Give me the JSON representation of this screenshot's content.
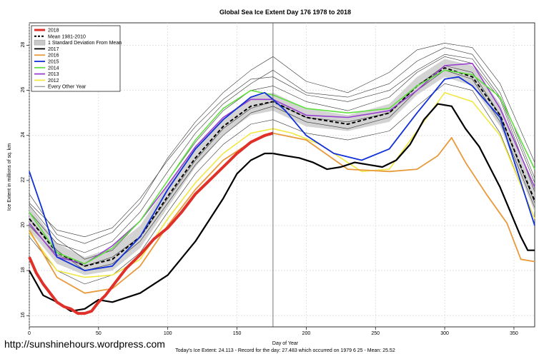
{
  "chart_data": {
    "type": "line",
    "title": "Global Sea Ice Extent Day 176 1978 to 2018",
    "xlabel": "Day of Year",
    "ylabel": "Ice Extent in millions of sq. km",
    "xlim": [
      0,
      365
    ],
    "ylim": [
      15.5,
      29
    ],
    "x_ticks": [
      0,
      50,
      100,
      150,
      200,
      250,
      300,
      350
    ],
    "y_ticks": [
      16,
      18,
      20,
      22,
      24,
      26,
      28
    ],
    "grid": true,
    "legend_position": "top-left",
    "current_day_marker": 176,
    "footer": "Today's Ice Extent: 24.113  - Record for the day: 27.483 which occurred on 1979 6 25  - Mean: 25.52",
    "legend": [
      {
        "label": "2018",
        "color": "#e0302a",
        "style": "thick"
      },
      {
        "label": "Mean 1981-2010",
        "color": "#000000",
        "style": "dashed"
      },
      {
        "label": "1 Standard Deviation From Mean",
        "color": "#c8c8c8",
        "style": "band"
      },
      {
        "label": "2017",
        "color": "#000000",
        "style": "solid"
      },
      {
        "label": "2016",
        "color": "#e89a3c",
        "style": "solid"
      },
      {
        "label": "2015",
        "color": "#1030d8",
        "style": "solid"
      },
      {
        "label": "2014",
        "color": "#60e040",
        "style": "solid"
      },
      {
        "label": "2013",
        "color": "#9a40d0",
        "style": "solid"
      },
      {
        "label": "2012",
        "color": "#f0e840",
        "style": "solid"
      },
      {
        "label": "Every Other Year",
        "color": "#555555",
        "style": "thin"
      }
    ],
    "band": {
      "x": [
        0,
        20,
        40,
        60,
        80,
        100,
        120,
        140,
        160,
        176,
        200,
        230,
        260,
        280,
        300,
        320,
        340,
        365
      ],
      "lower": [
        19.8,
        18.3,
        17.8,
        18.0,
        19.0,
        20.8,
        22.6,
        24.0,
        24.9,
        25.1,
        24.4,
        24.2,
        24.6,
        25.8,
        26.6,
        26.2,
        24.4,
        20.6
      ],
      "upper": [
        20.9,
        19.2,
        18.6,
        19.0,
        20.0,
        21.8,
        23.5,
        24.8,
        25.7,
        25.9,
        25.2,
        24.9,
        25.4,
        26.6,
        27.4,
        27.1,
        25.4,
        21.6
      ]
    },
    "series": [
      {
        "name": "Every Other Year",
        "color": "#333333",
        "width": 0.6,
        "x": [
          0,
          20,
          40,
          60,
          80,
          100,
          120,
          140,
          160,
          176,
          200,
          230,
          260,
          280,
          300,
          320,
          340,
          365
        ],
        "y": [
          20.6,
          19.2,
          18.8,
          19.3,
          20.6,
          22.4,
          24.1,
          25.4,
          26.3,
          26.9,
          25.9,
          25.7,
          26.3,
          27.3,
          27.9,
          27.6,
          25.9,
          22.1
        ]
      },
      {
        "name": "Every Other Year",
        "color": "#333333",
        "width": 0.6,
        "x": [
          0,
          20,
          40,
          60,
          80,
          100,
          120,
          140,
          160,
          176,
          200,
          230,
          260,
          280,
          300,
          320,
          340,
          365
        ],
        "y": [
          20.0,
          18.7,
          18.2,
          18.6,
          19.5,
          21.2,
          22.9,
          24.3,
          25.2,
          25.5,
          24.8,
          24.6,
          25.0,
          26.2,
          27.1,
          26.8,
          24.9,
          21.0
        ]
      },
      {
        "name": "Every Other Year",
        "color": "#333333",
        "width": 0.6,
        "x": [
          0,
          20,
          40,
          60,
          80,
          100,
          120,
          140,
          160,
          176,
          200,
          230,
          260,
          280,
          300,
          320,
          340,
          365
        ],
        "y": [
          21.4,
          19.6,
          19.2,
          19.7,
          21.0,
          23.0,
          24.6,
          25.9,
          26.9,
          27.5,
          26.4,
          25.9,
          26.8,
          27.8,
          28.1,
          27.9,
          26.3,
          22.8
        ]
      },
      {
        "name": "Every Other Year",
        "color": "#333333",
        "width": 0.6,
        "x": [
          0,
          20,
          40,
          60,
          80,
          100,
          120,
          140,
          160,
          176,
          200,
          230,
          260,
          280,
          300,
          320,
          340,
          365
        ],
        "y": [
          19.5,
          18.0,
          17.4,
          17.8,
          18.8,
          20.6,
          22.3,
          23.6,
          24.5,
          24.7,
          24.1,
          23.8,
          24.2,
          25.3,
          26.3,
          26.0,
          24.1,
          20.3
        ]
      },
      {
        "name": "Every Other Year",
        "color": "#333333",
        "width": 0.6,
        "x": [
          0,
          20,
          40,
          60,
          80,
          100,
          120,
          140,
          160,
          176,
          200,
          230,
          260,
          280,
          300,
          320,
          340,
          365
        ],
        "y": [
          20.9,
          19.4,
          18.5,
          18.9,
          20.2,
          22.0,
          23.7,
          25.1,
          26.0,
          26.2,
          25.5,
          25.1,
          25.7,
          26.8,
          27.5,
          27.2,
          25.6,
          21.5
        ]
      },
      {
        "name": "Every Other Year",
        "color": "#333333",
        "width": 0.6,
        "x": [
          0,
          20,
          40,
          60,
          80,
          100,
          120,
          140,
          160,
          176,
          200,
          230,
          260,
          280,
          300,
          320,
          340,
          365
        ],
        "y": [
          20.3,
          18.9,
          18.0,
          18.3,
          19.3,
          21.0,
          22.7,
          24.0,
          25.0,
          25.3,
          24.6,
          24.3,
          24.8,
          26.0,
          26.9,
          26.5,
          24.6,
          20.8
        ]
      },
      {
        "name": "Every Other Year",
        "color": "#333333",
        "width": 0.6,
        "x": [
          0,
          20,
          40,
          60,
          80,
          100,
          120,
          140,
          160,
          176,
          200,
          230,
          260,
          280,
          300,
          320,
          340,
          365
        ],
        "y": [
          21.0,
          19.8,
          19.5,
          19.9,
          21.2,
          22.9,
          24.4,
          25.6,
          26.5,
          26.6,
          25.8,
          25.5,
          26.0,
          26.9,
          27.6,
          27.4,
          25.7,
          21.9
        ]
      },
      {
        "name": "Mean 1981-2010",
        "color": "#000000",
        "width": 2,
        "dash": "5,3",
        "x": [
          0,
          20,
          40,
          60,
          80,
          100,
          120,
          140,
          160,
          176,
          200,
          230,
          260,
          280,
          300,
          320,
          340,
          365
        ],
        "y": [
          20.3,
          18.8,
          18.2,
          18.5,
          19.5,
          21.3,
          23.0,
          24.4,
          25.3,
          25.5,
          24.8,
          24.5,
          25.0,
          26.2,
          27.0,
          26.6,
          24.9,
          21.1
        ]
      },
      {
        "name": "2012",
        "color": "#f0e840",
        "width": 1.6,
        "x": [
          0,
          20,
          40,
          60,
          80,
          100,
          120,
          140,
          160,
          176,
          190,
          210,
          240,
          260,
          280,
          300,
          320,
          340,
          365
        ],
        "y": [
          19.7,
          18.0,
          17.7,
          17.8,
          18.5,
          20.3,
          21.9,
          23.2,
          24.1,
          24.3,
          24.1,
          23.6,
          22.4,
          22.5,
          24.2,
          25.9,
          25.5,
          24.0,
          20.3
        ]
      },
      {
        "name": "2013",
        "color": "#9a40d0",
        "width": 1.6,
        "x": [
          0,
          20,
          40,
          60,
          80,
          100,
          120,
          140,
          160,
          176,
          200,
          230,
          260,
          280,
          300,
          320,
          340,
          365
        ],
        "y": [
          20.1,
          18.6,
          18.3,
          19.1,
          20.2,
          21.8,
          23.5,
          24.8,
          25.6,
          25.6,
          24.9,
          24.8,
          25.1,
          26.0,
          27.1,
          27.2,
          25.2,
          21.7
        ]
      },
      {
        "name": "2014",
        "color": "#60e040",
        "width": 1.6,
        "x": [
          0,
          20,
          40,
          60,
          80,
          100,
          120,
          140,
          160,
          176,
          200,
          230,
          260,
          280,
          300,
          320,
          340,
          365
        ],
        "y": [
          20.6,
          18.8,
          18.3,
          19.0,
          20.2,
          22.0,
          23.8,
          25.2,
          26.0,
          25.8,
          25.2,
          25.0,
          25.2,
          26.2,
          26.9,
          26.7,
          25.7,
          22.5
        ]
      },
      {
        "name": "2015",
        "color": "#1030d8",
        "width": 1.8,
        "x": [
          0,
          10,
          20,
          40,
          60,
          80,
          100,
          120,
          140,
          160,
          170,
          176,
          185,
          200,
          220,
          240,
          260,
          280,
          300,
          310,
          320,
          340,
          365
        ],
        "y": [
          22.4,
          20.6,
          18.6,
          18.0,
          18.2,
          19.5,
          21.6,
          23.4,
          24.7,
          25.7,
          25.9,
          25.6,
          25.1,
          24.0,
          23.2,
          22.9,
          23.4,
          25.0,
          26.5,
          26.6,
          26.2,
          24.8,
          20.0
        ]
      },
      {
        "name": "2016",
        "color": "#e89a3c",
        "width": 1.8,
        "x": [
          0,
          20,
          40,
          60,
          80,
          100,
          120,
          140,
          160,
          176,
          200,
          230,
          260,
          280,
          295,
          305,
          315,
          330,
          345,
          355,
          365
        ],
        "y": [
          19.8,
          17.7,
          17.0,
          17.2,
          18.2,
          20.0,
          21.6,
          22.9,
          23.7,
          24.1,
          23.8,
          22.5,
          22.4,
          22.5,
          23.1,
          23.9,
          22.8,
          21.4,
          20.1,
          18.5,
          18.4
        ]
      },
      {
        "name": "2017",
        "color": "#000000",
        "width": 2.2,
        "x": [
          0,
          10,
          20,
          30,
          40,
          50,
          60,
          80,
          100,
          120,
          140,
          150,
          160,
          170,
          176,
          185,
          195,
          205,
          215,
          225,
          235,
          245,
          255,
          265,
          275,
          285,
          295,
          305,
          315,
          325,
          340,
          355,
          360,
          365
        ],
        "y": [
          18.0,
          16.9,
          16.6,
          16.2,
          16.3,
          16.7,
          16.6,
          17.0,
          17.8,
          19.3,
          21.2,
          22.3,
          22.9,
          23.2,
          23.2,
          23.1,
          23.0,
          22.8,
          22.5,
          22.6,
          22.8,
          22.7,
          22.6,
          22.9,
          23.6,
          24.7,
          25.4,
          25.3,
          24.3,
          23.5,
          21.7,
          19.5,
          18.9,
          18.9
        ]
      },
      {
        "name": "2018",
        "color": "#e0302a",
        "width": 4,
        "x": [
          0,
          5,
          10,
          15,
          20,
          25,
          30,
          35,
          40,
          45,
          50,
          55,
          60,
          70,
          80,
          90,
          100,
          110,
          120,
          130,
          140,
          150,
          160,
          170,
          176
        ],
        "y": [
          18.6,
          17.9,
          17.4,
          17.0,
          16.6,
          16.4,
          16.3,
          16.1,
          16.1,
          16.2,
          16.6,
          16.9,
          17.3,
          18.1,
          18.7,
          19.4,
          19.9,
          20.6,
          21.4,
          22.0,
          22.6,
          23.2,
          23.7,
          24.0,
          24.1
        ]
      }
    ]
  },
  "watermark": "http://sunshinehours.wordpress.com"
}
